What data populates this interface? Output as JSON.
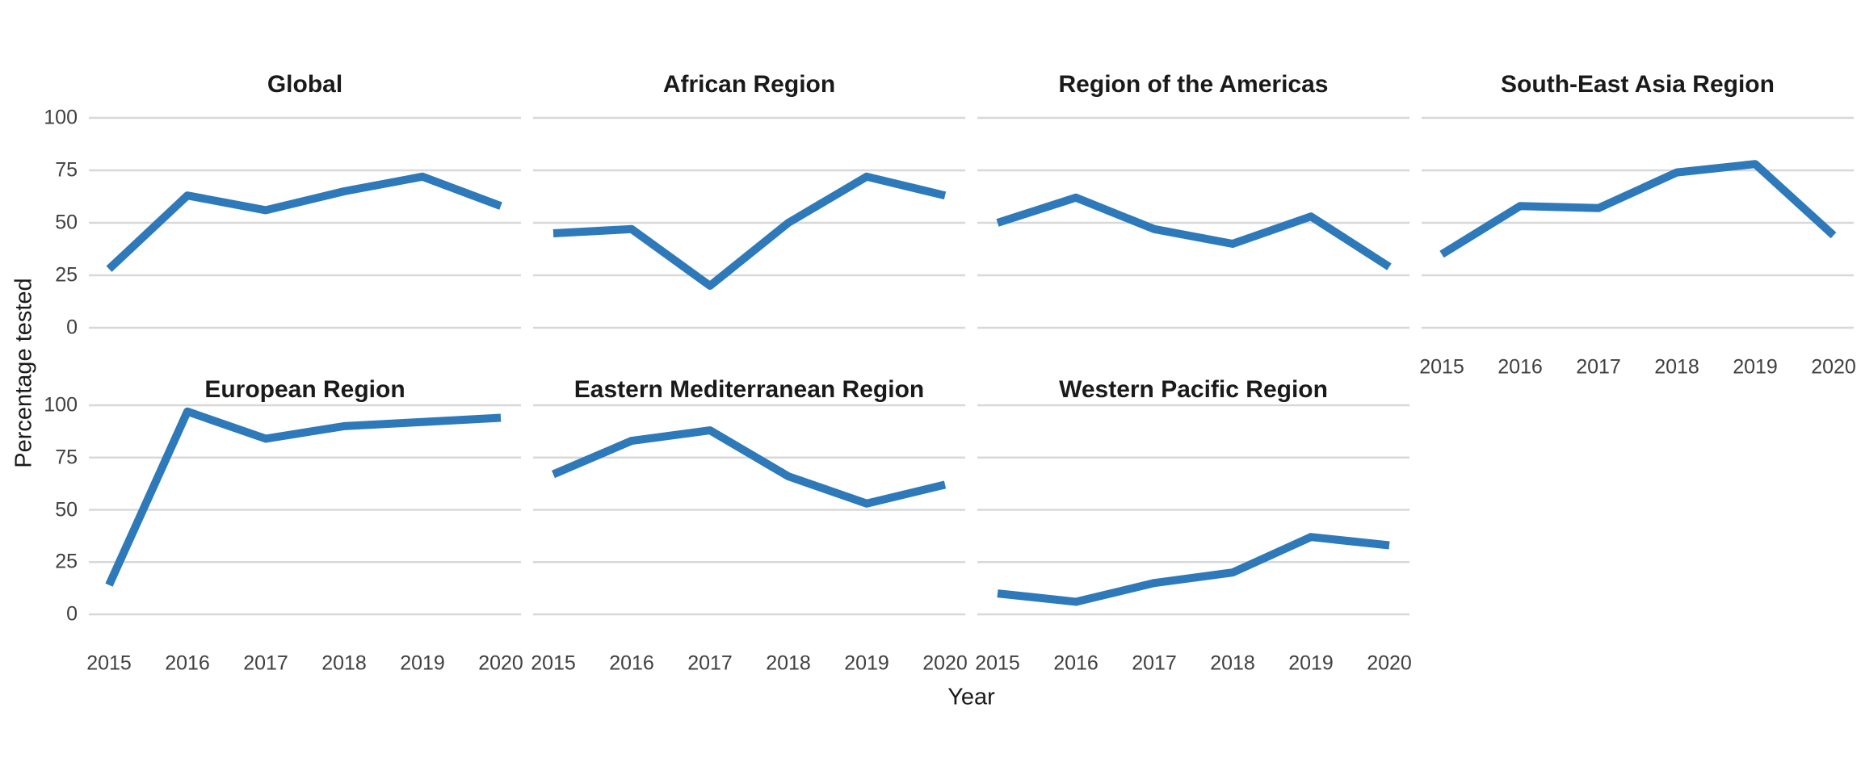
{
  "figure": {
    "y_axis_title": "Percentage tested",
    "x_axis_title": "Year",
    "colors": {
      "line": "#2E79B9",
      "gridline": "#D8D8D8",
      "facet_title_text": "#1A1A1A",
      "tick_label_text": "#404040",
      "axis_title_text": "#1A1A1A",
      "background": "#FFFFFF"
    }
  },
  "chart_data": {
    "type": "line",
    "title": "",
    "xlabel": "Year",
    "ylabel": "Percentage tested",
    "x": [
      2015,
      2016,
      2017,
      2018,
      2019,
      2020
    ],
    "x_tick_labels": [
      "2015",
      "2016",
      "2017",
      "2018",
      "2019",
      "2020"
    ],
    "y_ticks": [
      0,
      25,
      50,
      75,
      100
    ],
    "y_tick_labels": [
      "0",
      "25",
      "50",
      "75",
      "100"
    ],
    "ylim": [
      0,
      100
    ],
    "grid": "horizontal-only",
    "legend": "none",
    "facet_layout": {
      "rows": 2,
      "cols": 4
    },
    "facets": [
      {
        "name": "Global",
        "row": 0,
        "col": 0,
        "show_x_axis": false,
        "values": [
          28,
          63,
          56,
          65,
          72,
          58
        ]
      },
      {
        "name": "African Region",
        "row": 0,
        "col": 1,
        "show_x_axis": false,
        "values": [
          45,
          47,
          20,
          50,
          72,
          63
        ]
      },
      {
        "name": "Region of the Americas",
        "row": 0,
        "col": 2,
        "show_x_axis": false,
        "values": [
          50,
          62,
          47,
          40,
          53,
          29
        ]
      },
      {
        "name": "South-East Asia Region",
        "row": 0,
        "col": 3,
        "show_x_axis": true,
        "values": [
          35,
          58,
          57,
          74,
          78,
          44
        ]
      },
      {
        "name": "European Region",
        "row": 1,
        "col": 0,
        "show_x_axis": true,
        "values": [
          14,
          97,
          84,
          90,
          92,
          94
        ]
      },
      {
        "name": "Eastern Mediterranean Region",
        "row": 1,
        "col": 1,
        "show_x_axis": true,
        "values": [
          67,
          83,
          88,
          66,
          53,
          62
        ]
      },
      {
        "name": "Western Pacific Region",
        "row": 1,
        "col": 2,
        "show_x_axis": true,
        "values": [
          10,
          6,
          15,
          20,
          37,
          33
        ]
      }
    ]
  }
}
